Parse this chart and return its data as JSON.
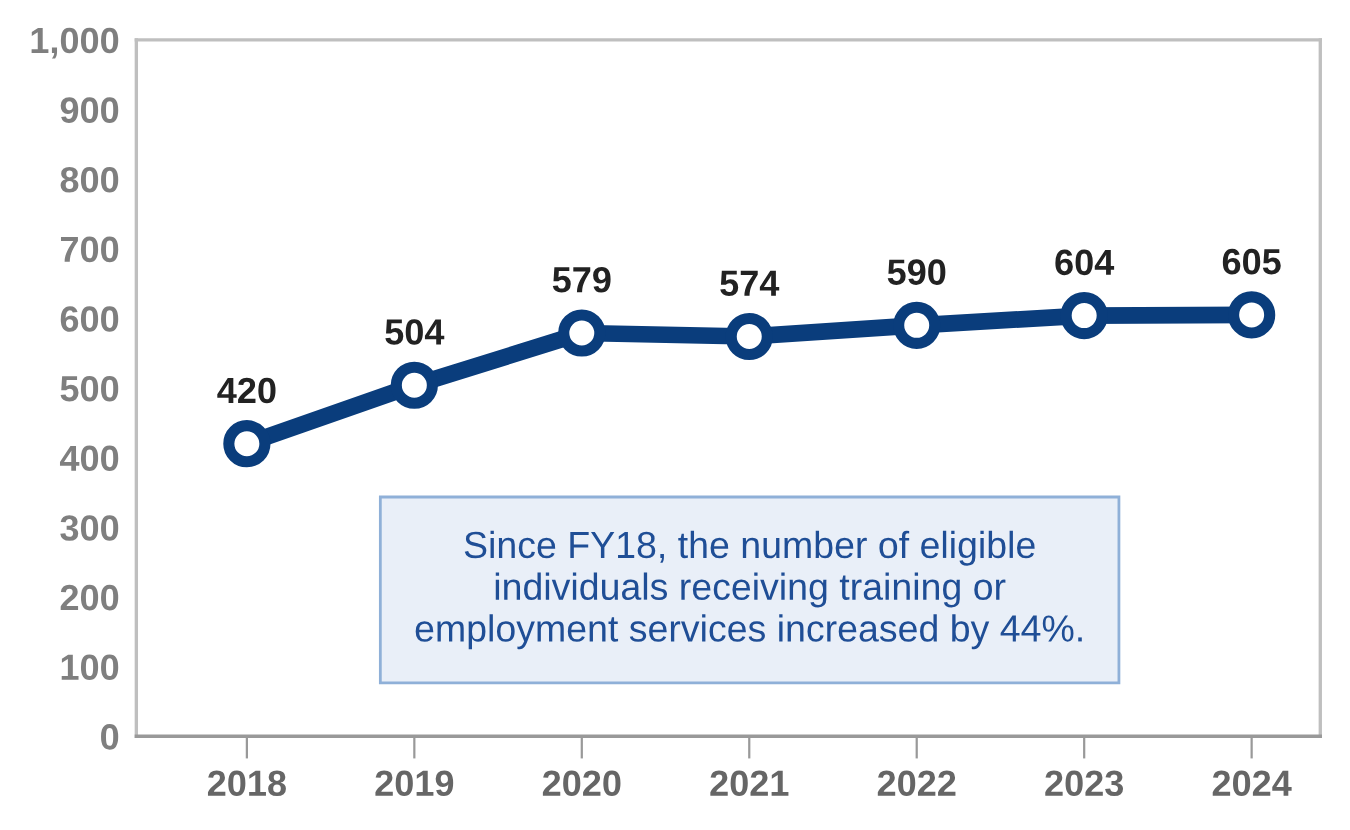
{
  "chart_data": {
    "type": "line",
    "categories": [
      "2018",
      "2019",
      "2020",
      "2021",
      "2022",
      "2023",
      "2024"
    ],
    "series": [
      {
        "color": "#0a3d7c",
        "values": [
          420,
          504,
          579,
          574,
          590,
          604,
          605
        ]
      }
    ],
    "ylim": [
      0,
      1000
    ],
    "yticks": [
      0,
      100,
      200,
      300,
      400,
      500,
      600,
      700,
      800,
      900,
      {
        "value": 1000,
        "label": "1,000"
      }
    ],
    "marker": "circle",
    "line_style": "solid",
    "grid": false,
    "data_labels": true,
    "annotations": [
      "Since FY18, the number of eligible\nindividuals receiving training or\nemployment services increased by 44%."
    ]
  }
}
